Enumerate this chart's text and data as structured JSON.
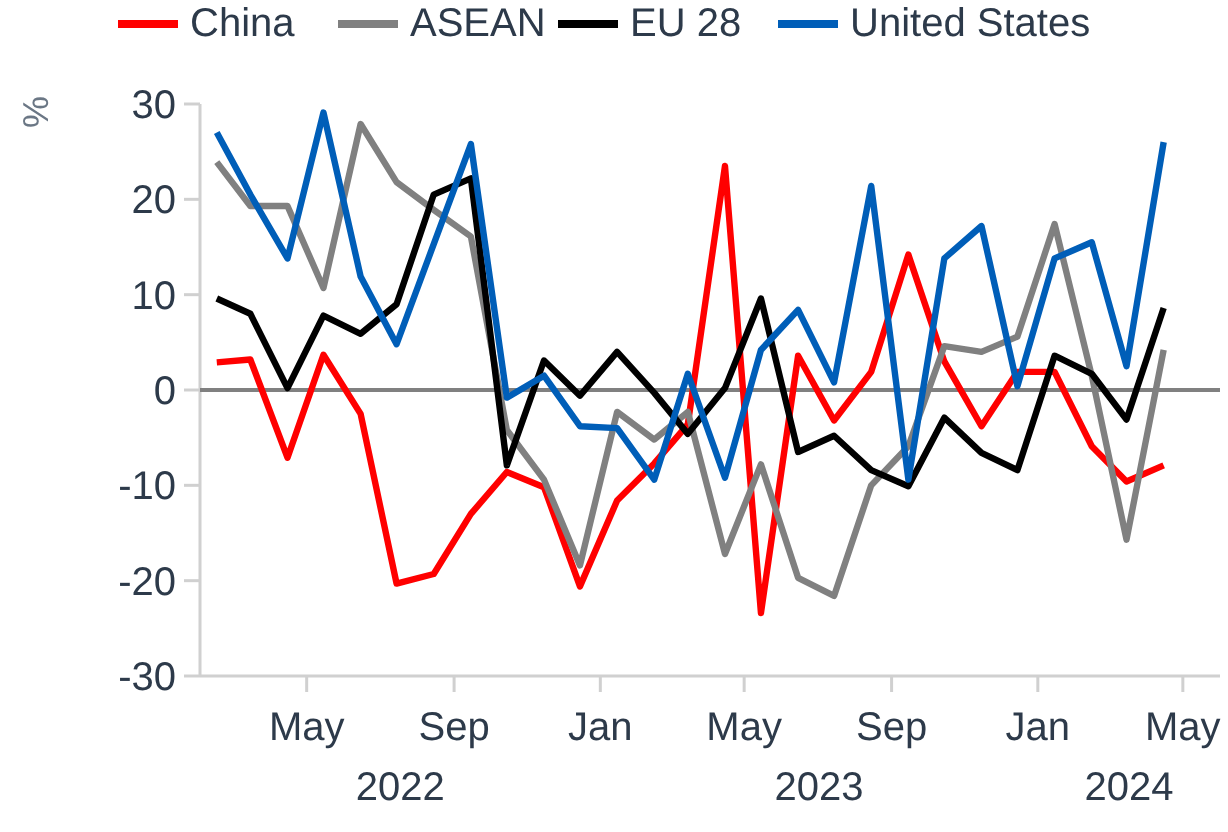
{
  "chart_data": {
    "type": "line",
    "ylabel": "%",
    "legend": "top",
    "x": [
      "2022-02-15",
      "2022-03-15",
      "2022-04-15",
      "2022-05-15",
      "2022-06-15",
      "2022-07-15",
      "2022-08-15",
      "2022-09-15",
      "2022-10-15",
      "2022-11-15",
      "2022-12-15",
      "2023-01-15",
      "2023-02-15",
      "2023-03-15",
      "2023-04-15",
      "2023-05-15",
      "2023-06-15",
      "2023-07-15",
      "2023-08-15",
      "2023-09-15",
      "2023-10-15",
      "2023-11-15",
      "2023-12-15",
      "2024-01-15",
      "2024-02-15",
      "2024-03-15",
      "2024-04-15"
    ],
    "series": [
      {
        "name": "China",
        "color": "#ff0000",
        "values": [
          2.9,
          3.2,
          -7.1,
          3.7,
          -2.5,
          -20.3,
          -19.3,
          -13,
          -8.6,
          -10.2,
          -20.6,
          -11.6,
          -7.7,
          -3.6,
          23.5,
          -23.4,
          3.6,
          -3.2,
          1.9,
          14.2,
          3,
          -3.8,
          1.9,
          1.9,
          -5.9,
          -9.6,
          -7.9
        ]
      },
      {
        "name": "ASEAN",
        "color": "#808080",
        "values": [
          23.9,
          19.3,
          19.3,
          10.7,
          27.9,
          21.8,
          18.9,
          16.1,
          -4.2,
          -9.4,
          -18.4,
          -2.3,
          -5.2,
          -2.3,
          -17.2,
          -7.8,
          -19.7,
          -21.6,
          -10,
          -5.9,
          4.6,
          4,
          5.6,
          17.4,
          1.5,
          -15.7,
          4.2
        ]
      },
      {
        "name": "EU 28",
        "color": "#000000",
        "values": [
          9.6,
          8,
          0.2,
          7.8,
          5.9,
          9,
          20.5,
          22.2,
          -7.9,
          3.1,
          -0.6,
          4,
          -0.3,
          -4.6,
          0.2,
          9.6,
          -6.5,
          -4.8,
          -8.4,
          -10.1,
          -2.9,
          -6.6,
          -8.4,
          3.6,
          1.7,
          -3.1,
          8.6
        ]
      },
      {
        "name": "United States",
        "color": "#005eb8",
        "values": [
          27,
          20.5,
          13.8,
          29.1,
          11.9,
          4.8,
          15.3,
          25.8,
          -0.8,
          1.5,
          -3.8,
          -4,
          -9.4,
          1.7,
          -9.2,
          4.2,
          8.4,
          0.8,
          21.4,
          -9.4,
          13.8,
          17.2,
          0.4,
          13.8,
          15.5,
          2.5,
          26
        ]
      }
    ],
    "xlim": [
      "2022-02-01",
      "2024-06-01"
    ],
    "xticks": [
      {
        "value": "2022-05-01",
        "label": "May"
      },
      {
        "value": "2022-09-01",
        "label": "Sep"
      },
      {
        "value": "2023-01-01",
        "label": "Jan"
      },
      {
        "value": "2023-05-01",
        "label": "May"
      },
      {
        "value": "2023-09-01",
        "label": "Sep"
      },
      {
        "value": "2024-01-01",
        "label": "Jan"
      },
      {
        "value": "2024-05-01",
        "label": "May"
      }
    ],
    "ylim": [
      -30,
      30
    ],
    "yticks": [
      -30,
      -20,
      -10,
      0,
      10,
      20,
      30
    ],
    "ref_lines": [
      {
        "axis": "y",
        "value": 0,
        "color": "#808080"
      }
    ],
    "annotations": [
      "2022",
      "2023",
      "2024"
    ],
    "grid": false,
    "marker": "none",
    "line_style": "solid"
  }
}
